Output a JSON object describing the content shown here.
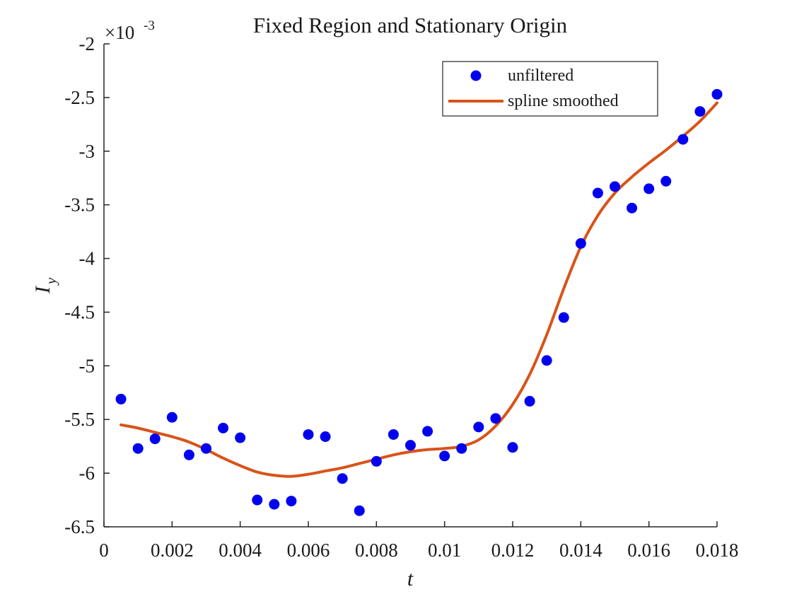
{
  "chart_data": {
    "type": "scatter",
    "title": "Fixed Region and Stationary Origin",
    "xlabel": "t",
    "ylabel_main": "I",
    "ylabel_sub": "y",
    "exponent_base": "×10",
    "exponent_power": "-3",
    "xlim": [
      0,
      0.018
    ],
    "ylim": [
      -6.5,
      -2
    ],
    "x_ticks": [
      0,
      0.002,
      0.004,
      0.006,
      0.008,
      0.01,
      0.012,
      0.014,
      0.016,
      0.018
    ],
    "x_tick_labels": [
      "0",
      "0.002",
      "0.004",
      "0.006",
      "0.008",
      "0.01",
      "0.012",
      "0.014",
      "0.016",
      "0.018"
    ],
    "y_ticks": [
      -6.5,
      -6,
      -5.5,
      -5,
      -4.5,
      -4,
      -3.5,
      -3,
      -2.5,
      -2
    ],
    "y_tick_labels": [
      "-6.5",
      "-6",
      "-5.5",
      "-5",
      "-4.5",
      "-4",
      "-3.5",
      "-3",
      "-2.5",
      "-2"
    ],
    "grid": false,
    "legend_position": "top-right",
    "series": [
      {
        "name": "unfiltered",
        "kind": "scatter",
        "color": "#0000ee",
        "x": [
          0.0005,
          0.001,
          0.0015,
          0.002,
          0.0025,
          0.003,
          0.0035,
          0.004,
          0.0045,
          0.005,
          0.0055,
          0.006,
          0.0065,
          0.007,
          0.0075,
          0.008,
          0.0085,
          0.009,
          0.0095,
          0.01,
          0.0105,
          0.011,
          0.0115,
          0.012,
          0.0125,
          0.013,
          0.0135,
          0.014,
          0.0145,
          0.015,
          0.0155,
          0.016,
          0.0165,
          0.017,
          0.0175,
          0.018
        ],
        "y": [
          -5.31,
          -5.77,
          -5.68,
          -5.48,
          -5.83,
          -5.77,
          -5.58,
          -5.67,
          -6.25,
          -6.29,
          -6.26,
          -5.64,
          -5.66,
          -6.05,
          -6.35,
          -5.89,
          -5.64,
          -5.74,
          -5.61,
          -5.84,
          -5.77,
          -5.57,
          -5.49,
          -5.76,
          -5.33,
          -4.95,
          -4.55,
          -3.86,
          -3.39,
          -3.33,
          -3.53,
          -3.35,
          -3.28,
          -2.89,
          -2.63,
          -2.47
        ]
      },
      {
        "name": "spline smoothed",
        "kind": "line",
        "color": "#d95319",
        "x": [
          0.0005,
          0.001,
          0.0015,
          0.002,
          0.0025,
          0.003,
          0.0035,
          0.004,
          0.0045,
          0.005,
          0.0055,
          0.006,
          0.0065,
          0.007,
          0.0075,
          0.008,
          0.0085,
          0.009,
          0.0095,
          0.01,
          0.0105,
          0.011,
          0.0115,
          0.012,
          0.0125,
          0.013,
          0.0135,
          0.014,
          0.0145,
          0.015,
          0.0155,
          0.016,
          0.0165,
          0.017,
          0.0175,
          0.018
        ],
        "y": [
          -5.55,
          -5.58,
          -5.62,
          -5.66,
          -5.71,
          -5.78,
          -5.86,
          -5.93,
          -5.99,
          -6.02,
          -6.03,
          -6.01,
          -5.98,
          -5.95,
          -5.91,
          -5.87,
          -5.83,
          -5.8,
          -5.78,
          -5.77,
          -5.75,
          -5.69,
          -5.56,
          -5.36,
          -5.08,
          -4.71,
          -4.28,
          -3.89,
          -3.6,
          -3.39,
          -3.24,
          -3.11,
          -2.99,
          -2.86,
          -2.72,
          -2.55
        ]
      }
    ]
  }
}
